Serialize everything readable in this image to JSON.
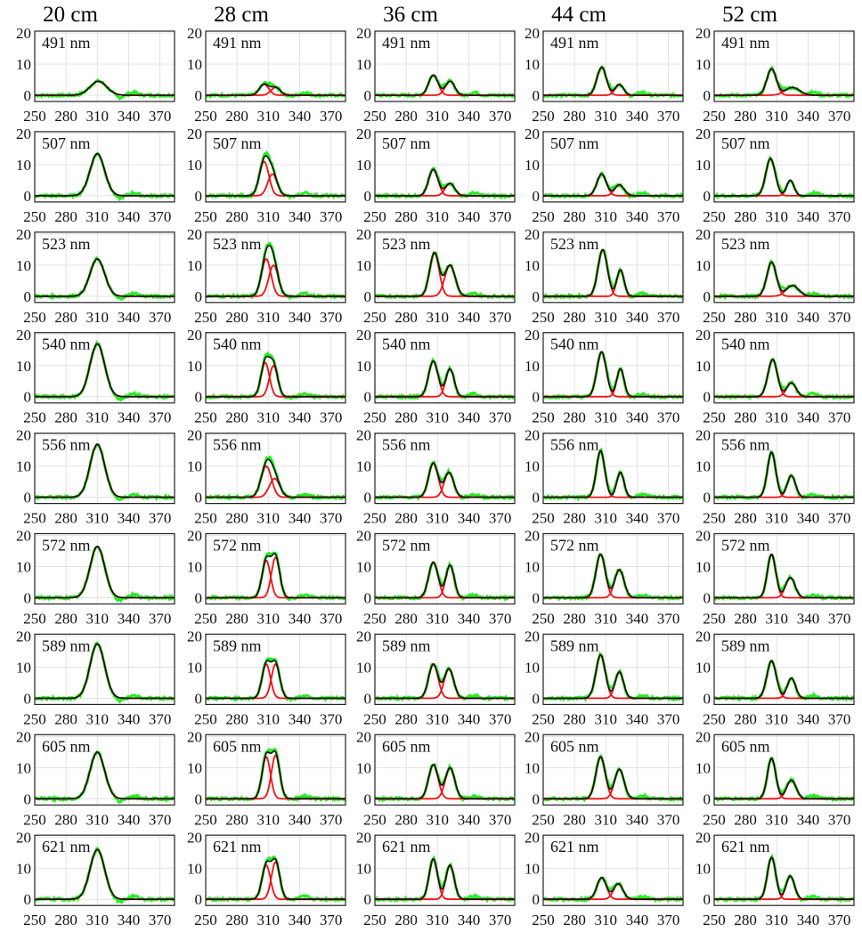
{
  "chart_data": {
    "type": "line",
    "title": "",
    "columns": [
      "20 cm",
      "28 cm",
      "36 cm",
      "44 cm",
      "52 cm"
    ],
    "rows": [
      {
        "label": "491 nm"
      },
      {
        "label": "507 nm"
      },
      {
        "label": "523 nm"
      },
      {
        "label": "540 nm"
      },
      {
        "label": "556 nm"
      },
      {
        "label": "572 nm"
      },
      {
        "label": "589 nm"
      },
      {
        "label": "605 nm"
      },
      {
        "label": "621 nm"
      }
    ],
    "xlim": [
      250,
      384
    ],
    "ylim": [
      -2,
      20.6
    ],
    "xticks": [
      "250",
      "280",
      "310",
      "340",
      "370"
    ],
    "yticks": [
      "0",
      "10",
      "20"
    ],
    "grid": true,
    "series_styles": {
      "data": "#22ee22",
      "components": "#ee1111",
      "fit": "#111111"
    },
    "panels_note": "each panel: gaussian components [center, amplitude, width] in data units",
    "panels": [
      [
        [
          [
            311,
            4.5,
            8
          ]
        ],
        [
          [
            306,
            3.5,
            4.5
          ],
          [
            317,
            2.5,
            4.5
          ]
        ],
        [
          [
            306,
            6.5,
            4.5
          ],
          [
            322,
            4.5,
            4.5
          ]
        ],
        [
          [
            306,
            9,
            4.5
          ],
          [
            323,
            3.5,
            4
          ]
        ],
        [
          [
            305,
            8.5,
            4.5
          ],
          [
            325,
            2.5,
            7
          ]
        ]
      ],
      [
        [
          [
            310,
            13.5,
            7
          ]
        ],
        [
          [
            306,
            11,
            4.5
          ],
          [
            314,
            7,
            4.5
          ]
        ],
        [
          [
            306,
            8.5,
            4.5
          ],
          [
            322,
            4,
            4.5
          ]
        ],
        [
          [
            306,
            7,
            4.5
          ],
          [
            323,
            3.5,
            4.5
          ]
        ],
        [
          [
            304,
            12,
            4.5
          ],
          [
            323,
            5,
            3.5
          ]
        ]
      ],
      [
        [
          [
            310,
            12,
            7
          ]
        ],
        [
          [
            308,
            12,
            4.5
          ],
          [
            315,
            10,
            4.5
          ]
        ],
        [
          [
            307,
            14,
            4.5
          ],
          [
            322,
            10,
            5
          ]
        ],
        [
          [
            307,
            15,
            4.5
          ],
          [
            324,
            8.5,
            3.5
          ]
        ],
        [
          [
            305,
            11,
            4.5
          ],
          [
            325,
            3.5,
            6
          ]
        ]
      ],
      [
        [
          [
            310,
            17,
            7
          ]
        ],
        [
          [
            307,
            11,
            4
          ],
          [
            315,
            10,
            4
          ]
        ],
        [
          [
            306,
            11.5,
            4.5
          ],
          [
            322,
            9,
            4
          ]
        ],
        [
          [
            306,
            14.5,
            4.5
          ],
          [
            324,
            9,
            3.5
          ]
        ],
        [
          [
            306,
            12,
            4.5
          ],
          [
            324,
            4.5,
            4.5
          ]
        ]
      ],
      [
        [
          [
            310,
            17,
            7
          ]
        ],
        [
          [
            308,
            10,
            5
          ],
          [
            316,
            6,
            5
          ]
        ],
        [
          [
            306,
            11,
            4.5
          ],
          [
            321,
            8,
            4.5
          ]
        ],
        [
          [
            305,
            15,
            4
          ],
          [
            324,
            8,
            3.5
          ]
        ],
        [
          [
            305,
            14.5,
            4
          ],
          [
            324,
            7,
            4
          ]
        ]
      ],
      [
        [
          [
            310,
            16.5,
            7
          ]
        ],
        [
          [
            308,
            12,
            4
          ],
          [
            317,
            13,
            4
          ]
        ],
        [
          [
            306,
            11.5,
            4.5
          ],
          [
            322,
            10.5,
            4
          ]
        ],
        [
          [
            305,
            14,
            4.5
          ],
          [
            323,
            9,
            4.5
          ]
        ],
        [
          [
            305,
            14,
            4
          ],
          [
            323,
            6.5,
            4.5
          ]
        ]
      ],
      [
        [
          [
            310,
            17.5,
            7
          ]
        ],
        [
          [
            308,
            11,
            4
          ],
          [
            317,
            11,
            4
          ]
        ],
        [
          [
            306,
            11,
            4.5
          ],
          [
            321,
            9.5,
            4.5
          ]
        ],
        [
          [
            305,
            14,
            4.5
          ],
          [
            323,
            8.5,
            4
          ]
        ],
        [
          [
            305,
            12,
            4.5
          ],
          [
            324,
            6.5,
            4
          ]
        ]
      ],
      [
        [
          [
            310,
            15,
            7
          ]
        ],
        [
          [
            308,
            13.5,
            4
          ],
          [
            317,
            14,
            4
          ]
        ],
        [
          [
            306,
            11,
            4.5
          ],
          [
            322,
            10,
            4.5
          ]
        ],
        [
          [
            305,
            13.5,
            4.5
          ],
          [
            323,
            9.5,
            4.5
          ]
        ],
        [
          [
            305,
            13,
            4
          ],
          [
            324,
            6,
            4.5
          ]
        ]
      ],
      [
        [
          [
            310,
            16,
            7
          ]
        ],
        [
          [
            308,
            11,
            4
          ],
          [
            317,
            12,
            4
          ]
        ],
        [
          [
            306,
            13,
            4
          ],
          [
            322,
            11,
            4
          ]
        ],
        [
          [
            306,
            7,
            4.5
          ],
          [
            322,
            5,
            4.5
          ]
        ],
        [
          [
            305,
            13.5,
            4
          ],
          [
            323,
            7.5,
            4
          ]
        ]
      ]
    ]
  }
}
